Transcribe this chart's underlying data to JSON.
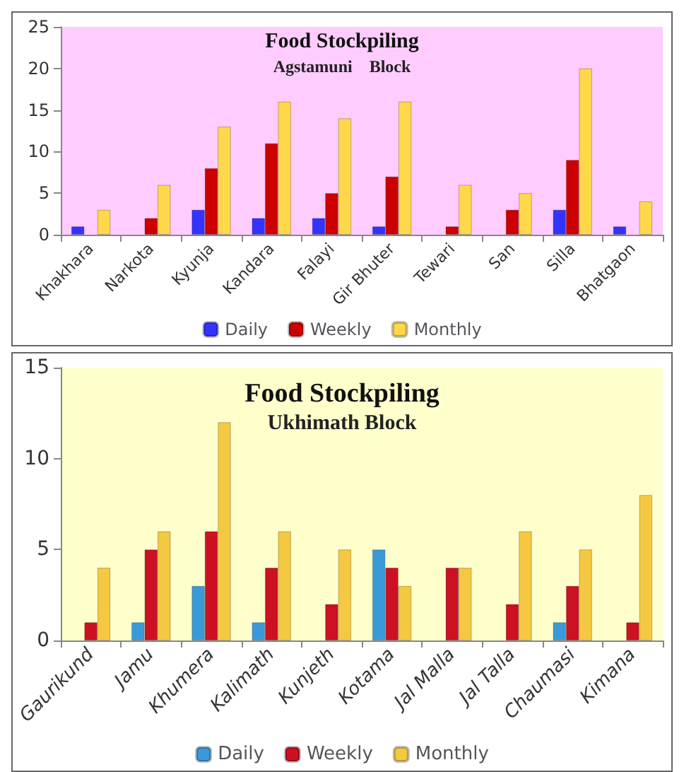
{
  "chart_data": [
    {
      "type": "bar",
      "title": "Food Stockpiling",
      "subtitle": "Agstamuni    Block",
      "categories": [
        "Khakhara",
        "Narkota",
        "Kyunja",
        "Kandara",
        "Falayi",
        "Gir Bhuter",
        "Tewari",
        "San",
        "Silla",
        "Bhatgaon"
      ],
      "series": [
        {
          "name": "Daily",
          "color": "#3333ff",
          "values": [
            1,
            null,
            3,
            2,
            2,
            1,
            null,
            null,
            3,
            1
          ]
        },
        {
          "name": "Weekly",
          "color": "#cc0000",
          "values": [
            null,
            2,
            8,
            11,
            5,
            7,
            1,
            3,
            9,
            null
          ]
        },
        {
          "name": "Monthly",
          "color": "#ffd84a",
          "values": [
            3,
            6,
            13,
            16,
            14,
            16,
            6,
            5,
            20,
            4
          ]
        }
      ],
      "ylim": [
        0,
        25
      ],
      "yticks": [
        0,
        5,
        10,
        15,
        20,
        25
      ],
      "grid": false,
      "legend": "bottom"
    },
    {
      "type": "bar",
      "title": "Food Stockpiling",
      "subtitle": "Ukhimath Block",
      "categories": [
        "Gaurikund",
        "Jamu",
        "Khumera",
        "Kalimath",
        "Kunjeth",
        "Kotama",
        "Jal Malla",
        "Jal Talla",
        "Chaumasi",
        "Kimana"
      ],
      "series": [
        {
          "name": "Daily",
          "color": "#3a9ad9",
          "values": [
            null,
            1,
            3,
            1,
            null,
            5,
            null,
            null,
            1,
            null
          ]
        },
        {
          "name": "Weekly",
          "color": "#cc1122",
          "values": [
            1,
            5,
            6,
            4,
            2,
            4,
            4,
            2,
            3,
            1
          ]
        },
        {
          "name": "Monthly",
          "color": "#f5c842",
          "values": [
            4,
            6,
            12,
            6,
            5,
            3,
            4,
            6,
            5,
            8
          ]
        }
      ],
      "ylim": [
        0,
        15
      ],
      "yticks": [
        0,
        5,
        10,
        15
      ],
      "grid": false,
      "legend": "bottom"
    }
  ]
}
